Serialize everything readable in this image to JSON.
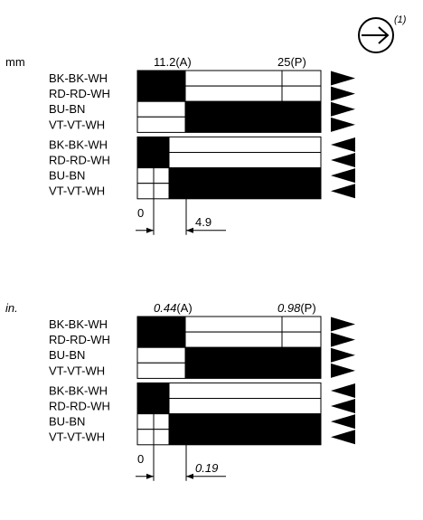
{
  "reference": "(1)",
  "panels": [
    {
      "unit": "mm",
      "unit_italic": false,
      "mark_a": "11.2(A)",
      "mark_p": "25(P)",
      "zero": "0",
      "dim": "4.9",
      "rows": [
        {
          "label": "BK-BK-WH",
          "fill": "left",
          "split": "A",
          "arrow": "right"
        },
        {
          "label": "RD-RD-WH",
          "fill": "left",
          "split": "A",
          "arrow": "right"
        },
        {
          "label": "BU-BN",
          "fill": "right",
          "split": "A",
          "arrow": "right"
        },
        {
          "label": "VT-VT-WH",
          "fill": "right",
          "split": "A",
          "arrow": "right"
        },
        {
          "label": "BK-BK-WH",
          "fill": "left",
          "split": "B",
          "arrow": "left"
        },
        {
          "label": "RD-RD-WH",
          "fill": "left",
          "split": "B",
          "arrow": "left"
        },
        {
          "label": "BU-BN",
          "fill": "right",
          "split": "B",
          "arrow": "left"
        },
        {
          "label": "VT-VT-WH",
          "fill": "right",
          "split": "B",
          "arrow": "left"
        }
      ]
    },
    {
      "unit": "in.",
      "unit_italic": true,
      "mark_a": "0.44",
      "mark_a_suffix": "(A)",
      "mark_p": "0.98",
      "mark_p_suffix": "(P)",
      "zero": "0",
      "dim": "0.19",
      "rows": [
        {
          "label": "BK-BK-WH",
          "fill": "left",
          "split": "A",
          "arrow": "right"
        },
        {
          "label": "RD-RD-WH",
          "fill": "left",
          "split": "A",
          "arrow": "right"
        },
        {
          "label": "BU-BN",
          "fill": "right",
          "split": "A",
          "arrow": "right"
        },
        {
          "label": "VT-VT-WH",
          "fill": "right",
          "split": "A",
          "arrow": "right"
        },
        {
          "label": "BK-BK-WH",
          "fill": "left",
          "split": "B",
          "arrow": "left"
        },
        {
          "label": "RD-RD-WH",
          "fill": "left",
          "split": "B",
          "arrow": "left"
        },
        {
          "label": "BU-BN",
          "fill": "right",
          "split": "B",
          "arrow": "left"
        },
        {
          "label": "VT-VT-WH",
          "fill": "right",
          "split": "B",
          "arrow": "left"
        }
      ]
    }
  ],
  "colors": {
    "ink": "#000000",
    "paper": "#ffffff"
  },
  "icon": "circled-arrow-right-icon"
}
